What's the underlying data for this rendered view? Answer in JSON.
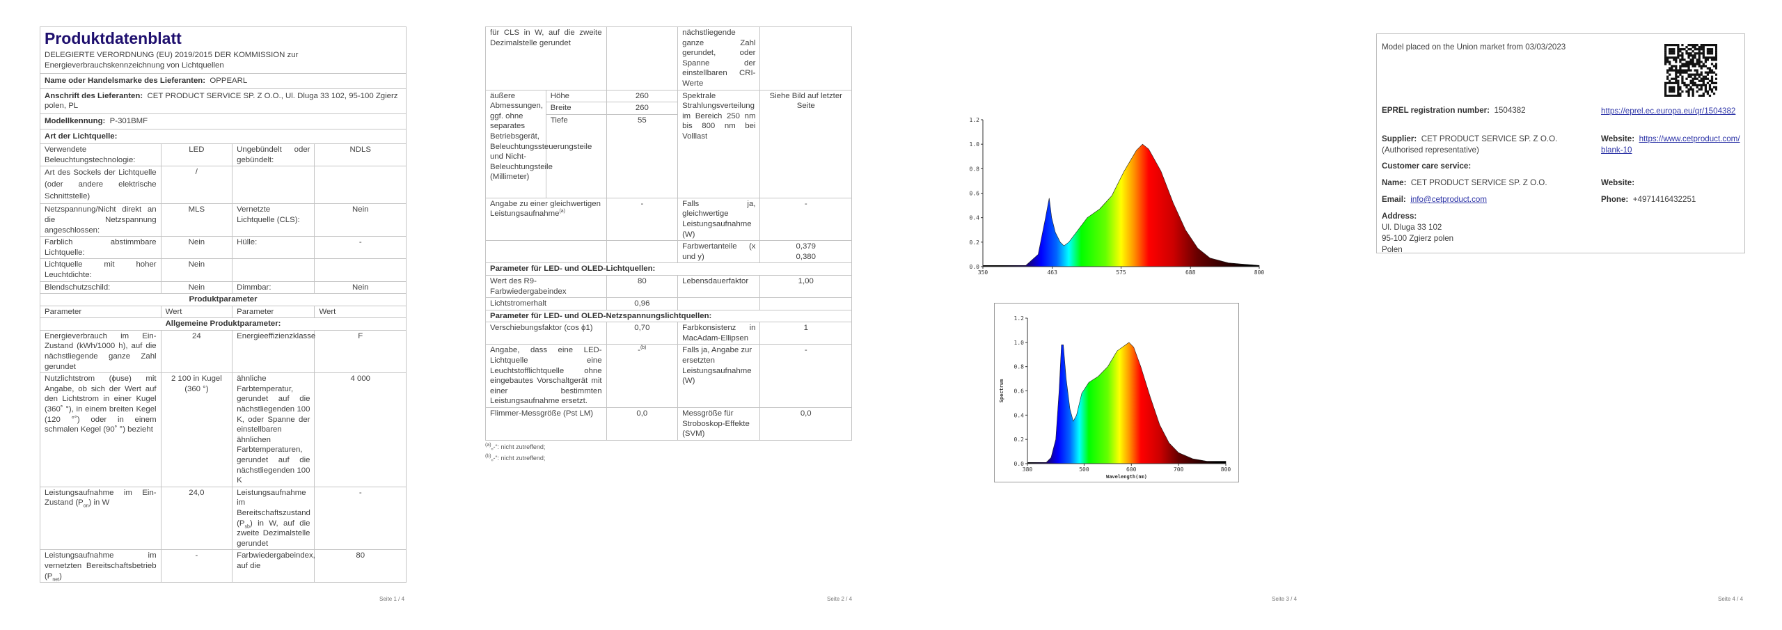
{
  "page1": {
    "title": "Produktdatenblatt",
    "subtitle_line1": "DELEGIERTE VERORDNUNG (EU) 2019/2015 DER KOMMISSION zur",
    "subtitle_line2": "Energieverbrauchskennzeichnung von Lichtquellen",
    "supplier_label": "Name oder Handelsmarke des Lieferanten:",
    "supplier_value": "OPPEARL",
    "address_label": "Anschrift des Lieferanten:",
    "address_value": "CET PRODUCT SERVICE SP. Z O.O., Ul. Dluga 33 102, 95-100 Zgierz polen, PL",
    "model_label": "Modellkennung:",
    "model_value": "P-301BMF",
    "art_label": "Art der Lichtquelle:",
    "art_rows": [
      [
        "Verwendete Beleuchtungstechnologie:",
        "LED",
        "Ungebündelt oder gebündelt:",
        "NDLS"
      ],
      [
        "Art des Sockels der Lichtquelle (oder andere elektrische Schnittstelle)",
        "/",
        "",
        ""
      ],
      [
        "Netzspannung/Nicht direkt an die Netzspannung angeschlossen:",
        "MLS",
        "Vernetzte Lichtquelle (CLS):",
        "Nein"
      ],
      [
        "Farblich abstimmbare Lichtquelle:",
        "Nein",
        "Hülle:",
        "-"
      ],
      [
        "Lichtquelle mit hoher Leuchtdichte:",
        "Nein",
        "",
        ""
      ],
      [
        "Blendschutzschild:",
        "Nein",
        "Dimmbar:",
        "Nein"
      ]
    ],
    "produktparameter": "Produktparameter",
    "header": [
      "Parameter",
      "Wert",
      "Parameter",
      "Wert"
    ],
    "allgemein": "Allgemeine Produktparameter:",
    "rows": [
      [
        "Energieverbrauch im Ein-Zustand (kWh/1000 h), auf die nächstliegende ganze Zahl gerundet",
        "24",
        "Energieeffizienzklasse",
        "F"
      ],
      [
        "Nutzlichtstrom (ϕuse) mit Angabe, ob sich der Wert auf den Lichtstrom in einer Kugel (360˚ °), in einem breiten Kegel (120 °˚) oder in einem schmalen Kegel (90˚ °) bezieht",
        "2 100 in Kugel (360 °)",
        "ähnliche Farbtemperatur, gerundet auf die nächstliegenden 100 K, oder Spanne der einstellbaren ähnlichen Farbtemperaturen, gerundet auf die nächstliegenden 100 K",
        "4 000"
      ]
    ],
    "pon_row": {
      "a1": "Leistungsaufnahme im Ein-Zustand (P",
      "a_sub": "on",
      "a2": ") in W",
      "b": "24,0",
      "c1": "Leistungsaufnahme im Bereitschaftszustand (P",
      "c_sub": "sb",
      "c2": ") in W, auf die zweite Dezimalstelle gerundet",
      "d": "-"
    },
    "pnet_row": {
      "a1": "Leistungsaufnahme im vernetzten Bereitschaftsbetrieb (P",
      "a_sub": "net",
      "a2": ")",
      "b": "-",
      "c": "Farbwiedergabeindex, auf die",
      "d": "80"
    },
    "footer": "Seite 1 / 4"
  },
  "page2": {
    "cont_row": [
      "für CLS in W, auf die zweite Dezimalstelle gerundet",
      "",
      "nächstliegende ganze Zahl gerundet, oder Spanne der einstellbaren CRI-Werte",
      ""
    ],
    "dims_label": "äußere Abmessungen, ggf. ohne separates Betriebsgerät, Beleuchtungssteuerungsteile und Nicht-Beleuchtungsteile (Millimeter)",
    "dims": [
      [
        "Höhe",
        "260"
      ],
      [
        "Breite",
        "260"
      ],
      [
        "Tiefe",
        "55"
      ]
    ],
    "spectral_label": "Spektrale Strahlungsverteilung im Bereich 250 nm bis 800 nm bei Volllast",
    "spectral_value": "Siehe Bild auf letzter Seite",
    "equiv_row": {
      "a": "Angabe zu einer gleichwertigen Leistungsaufnahme",
      "a_sup": "(a)",
      "b": "-",
      "c": "Falls ja, gleichwertige Leistungsaufnahme (W)",
      "d": "-"
    },
    "chroma_row": {
      "c": "Farbwertanteile (x und y)",
      "d1": "0,379",
      "d2": "0,380"
    },
    "led_header": "Parameter für LED- und OLED-Lichtquellen:",
    "led_rows": [
      [
        "Wert des R9-Farbwiedergabeindex",
        "80",
        "Lebensdauerfaktor",
        "1,00"
      ],
      [
        "Lichtstromerhalt",
        "0,96",
        "",
        ""
      ]
    ],
    "mains_header": "Parameter für LED- und OLED-Netzspannungslichtquellen:",
    "mains_rows": [
      [
        "Verschiebungsfaktor (cos ϕ1)",
        "0,70",
        "Farbkonsistenz in MacAdam-Ellipsen",
        "1"
      ]
    ],
    "replace_row": {
      "a": "Angabe, dass eine LED-Lichtquelle eine Leuchtstofflichtquelle ohne eingebautes Vorschaltgerät mit einer bestimmten Leistungsaufnahme ersetzt.",
      "b": "-",
      "b_sup": "(b)",
      "c": "Falls ja, Angabe zur ersetzten Leistungsaufnahme (W)",
      "d": "-"
    },
    "flicker_row": [
      "Flimmer-Messgröße (Pst LM)",
      "0,0",
      "Messgröße für Stroboskop-Effekte (SVM)",
      "0,0"
    ],
    "footnotes": [
      {
        "mark": "(a)",
        "text": "„-“: nicht zutreffend;"
      },
      {
        "mark": "(b)",
        "text": "„-“: nicht zutreffend;"
      }
    ],
    "footer": "Seite 2 / 4"
  },
  "chart_data": [
    {
      "type": "area",
      "title": "",
      "xlabel": "",
      "ylabel": "",
      "xlim": [
        350,
        800
      ],
      "ylim": [
        0,
        1.2
      ],
      "x_ticks": [
        "350",
        "463",
        "575",
        "688",
        "800"
      ],
      "y_ticks": [
        "0.0",
        "0.2",
        "0.4",
        "0.6",
        "0.8",
        "1.0",
        "1.2"
      ],
      "fill": "visible-spectrum gradient",
      "x": [
        350,
        420,
        440,
        452,
        458,
        462,
        468,
        476,
        482,
        490,
        505,
        520,
        540,
        560,
        580,
        600,
        610,
        620,
        640,
        660,
        680,
        700,
        720,
        750,
        800
      ],
      "y": [
        0.01,
        0.01,
        0.1,
        0.4,
        0.56,
        0.4,
        0.28,
        0.2,
        0.17,
        0.2,
        0.3,
        0.4,
        0.47,
        0.58,
        0.78,
        0.95,
        1.0,
        0.96,
        0.78,
        0.52,
        0.3,
        0.15,
        0.07,
        0.03,
        0.01
      ]
    },
    {
      "type": "area",
      "title": "",
      "xlabel": "Wavelength(nm)",
      "ylabel": "Spectrum",
      "xlim": [
        380,
        800
      ],
      "ylim": [
        0,
        1.2
      ],
      "x_ticks": [
        "380",
        "500",
        "600",
        "700",
        "800"
      ],
      "x_tick_values": [
        380,
        500,
        600,
        700,
        800
      ],
      "y_ticks": [
        "0.0",
        "0.2",
        "0.4",
        "0.6",
        "0.8",
        "1.0",
        "1.2"
      ],
      "fill": "visible-spectrum gradient",
      "x": [
        380,
        420,
        430,
        440,
        447,
        452,
        456,
        462,
        470,
        477,
        484,
        495,
        510,
        530,
        550,
        570,
        595,
        605,
        620,
        640,
        660,
        680,
        700,
        730,
        760,
        800
      ],
      "y": [
        0.01,
        0.01,
        0.05,
        0.2,
        0.6,
        0.98,
        0.98,
        0.7,
        0.45,
        0.35,
        0.4,
        0.58,
        0.67,
        0.72,
        0.8,
        0.93,
        1.0,
        0.96,
        0.8,
        0.55,
        0.32,
        0.17,
        0.09,
        0.04,
        0.02,
        0.02
      ]
    }
  ],
  "page3": {
    "footer": "Seite 3 / 4"
  },
  "page4": {
    "market_text": "Model placed on the Union market from 03/03/2023",
    "eprel_label": "EPREL registration number:",
    "eprel_value": "1504382",
    "eprel_link": "https://eprel.ec.europa.eu/qr/1504382",
    "supplier_label": "Supplier:",
    "supplier_value": "CET PRODUCT SERVICE SP. Z O.O. (Authorised representative)",
    "website_label": "Website:",
    "website_value": "https://www.cetproduct.com/blank-10",
    "care_label": "Customer care service:",
    "name_label": "Name:",
    "name_value": "CET PRODUCT SERVICE SP. Z O.O.",
    "care_website_label": "Website:",
    "email_label": "Email:",
    "email_value": "info@cetproduct.com",
    "phone_label": "Phone:",
    "phone_value": "+4971416432251",
    "address_label": "Address:",
    "address_lines": [
      "Ul. Dluga 33 102",
      "95-100 Zgierz polen",
      "Polen"
    ],
    "qr_icon": "qr-code",
    "footer": "Seite 4 / 4"
  }
}
